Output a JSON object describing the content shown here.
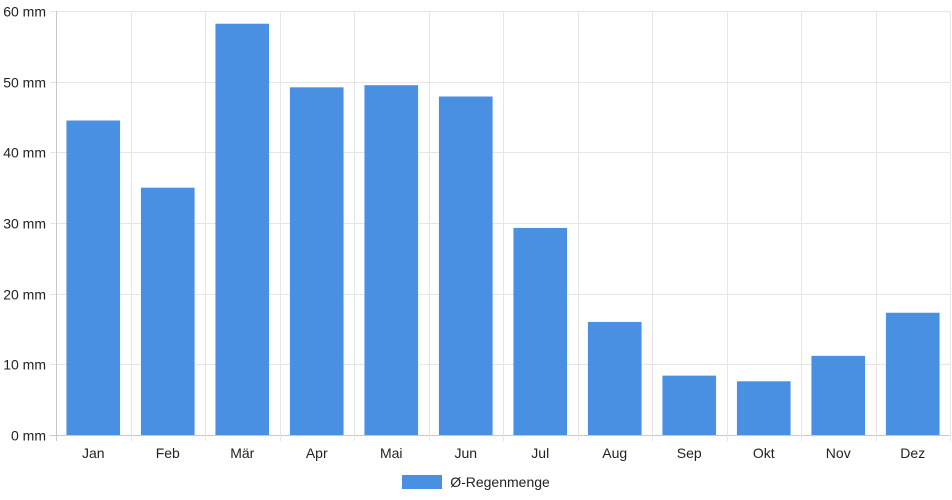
{
  "chart_data": {
    "type": "bar",
    "categories": [
      "Jan",
      "Feb",
      "Mär",
      "Apr",
      "Mai",
      "Jun",
      "Jul",
      "Aug",
      "Sep",
      "Okt",
      "Nov",
      "Dez"
    ],
    "series": [
      {
        "name": "Ø-Regenmenge",
        "values": [
          44.5,
          35.0,
          58.2,
          49.2,
          49.5,
          47.9,
          29.3,
          16.0,
          8.4,
          7.6,
          11.2,
          17.3
        ],
        "color": "#4a90e2"
      }
    ],
    "y_ticks": [
      "0 mm",
      "10 mm",
      "20 mm",
      "30 mm",
      "40 mm",
      "50 mm",
      "60 mm"
    ],
    "ylim": [
      0,
      60
    ],
    "y_unit": "mm",
    "grid": true,
    "legend_position": "bottom-center",
    "title": "",
    "xlabel": "",
    "ylabel": ""
  }
}
